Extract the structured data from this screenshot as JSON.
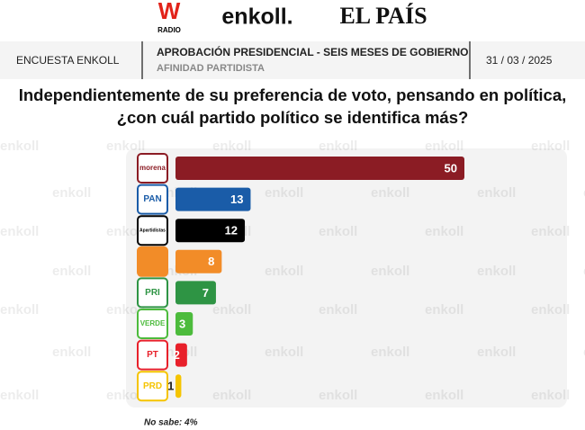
{
  "logos": {
    "radio_w": "W",
    "radio": "RADIO",
    "enkoll": "enkoll.",
    "elpais": "EL PAÍS"
  },
  "header": {
    "left": "ENCUESTA ENKOLL",
    "title": "APROBACIÓN PRESIDENCIAL - SEIS MESES DE GOBIERNO",
    "subtitle": "AFINIDAD PARTIDISTA",
    "date": "31 / 03 / 2025"
  },
  "watermark": "enkoll",
  "chart_data": {
    "type": "bar",
    "orientation": "horizontal",
    "title": [
      "Independientemente de su preferencia de voto, pensando en política,",
      "¿con cuál partido político se identifica más?"
    ],
    "categories": [
      "morena",
      "PAN",
      "Apartidistas",
      null,
      "PRI",
      "VERDE",
      "PT",
      "PRD"
    ],
    "values": [
      50,
      13,
      12,
      8,
      7,
      3,
      2,
      1
    ],
    "colors": [
      "#8b1c24",
      "#1a5ca8",
      "#000000",
      "#f28c28",
      "#2e9444",
      "#4cbb3c",
      "#e8202a",
      "#f5c400"
    ],
    "footnote": "No sabe: 4%"
  }
}
